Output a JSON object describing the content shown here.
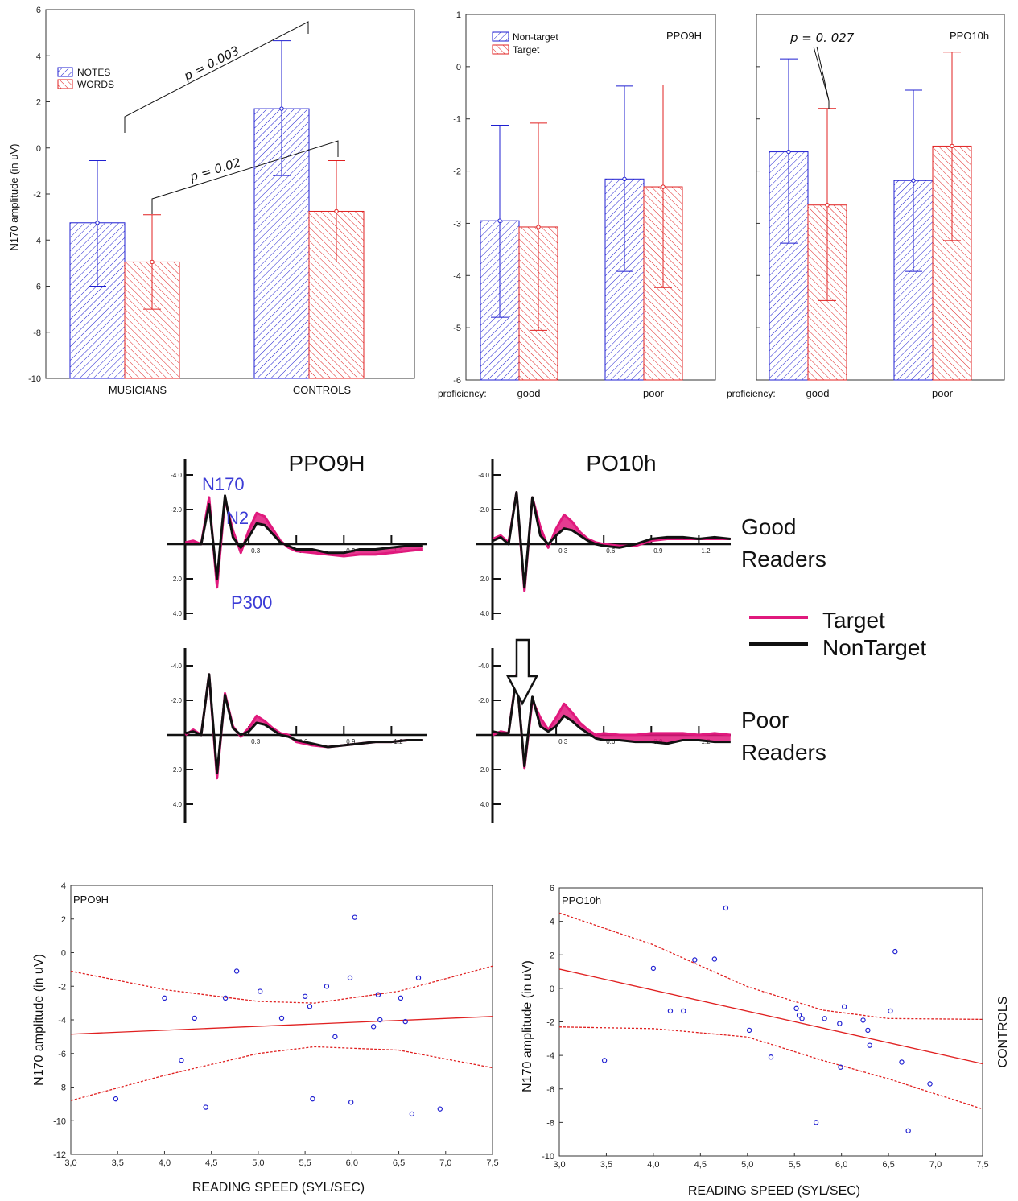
{
  "colors": {
    "blue": "#1f1fd1",
    "red": "#e02020",
    "magenta": "#e0197d",
    "black": "#111111",
    "component_label": "#3b3bd6"
  },
  "chart_data": [
    {
      "type": "bar",
      "ylabel": "N170 amplitude (in uV)",
      "ylim": [
        -10,
        6
      ],
      "yticks": [
        "6",
        "4",
        "2",
        "0",
        "-2",
        "-4",
        "-6",
        "-8",
        "-10"
      ],
      "categories": [
        "MUSICIANS",
        "CONTROLS"
      ],
      "series": [
        {
          "name": "NOTES",
          "values": [
            -3.25,
            1.7
          ],
          "error_low": [
            -6.0,
            -1.2
          ],
          "error_high": [
            -0.55,
            4.65
          ]
        },
        {
          "name": "WORDS",
          "values": [
            -4.95,
            -2.75
          ],
          "error_low": [
            -7.0,
            -4.95
          ],
          "error_high": [
            -2.9,
            -0.55
          ]
        }
      ],
      "annotations": [
        "p = 0.003",
        "p = 0.02"
      ]
    },
    {
      "type": "bar",
      "panel_label": "PPO9H",
      "ylim": [
        -6,
        1
      ],
      "yticks": [
        "1",
        "0",
        "-1",
        "-2",
        "-3",
        "-4",
        "-5",
        "-6"
      ],
      "axis_prefix": "proficiency:",
      "categories": [
        "good",
        "poor"
      ],
      "series": [
        {
          "name": "Non-target",
          "values": [
            -2.95,
            -2.15
          ],
          "error_low": [
            -4.8,
            -3.92
          ],
          "error_high": [
            -1.12,
            -0.37
          ]
        },
        {
          "name": "Target",
          "values": [
            -3.07,
            -2.3
          ],
          "error_low": [
            -5.05,
            -4.23
          ],
          "error_high": [
            -1.08,
            -0.35
          ]
        }
      ]
    },
    {
      "type": "bar",
      "panel_label": "PPO10h",
      "ylim": [
        -6,
        1
      ],
      "axis_prefix": "proficiency:",
      "categories": [
        "good",
        "poor"
      ],
      "series": [
        {
          "name": "Non-target",
          "values": [
            -1.63,
            -2.18
          ],
          "error_low": [
            -3.38,
            -3.92
          ],
          "error_high": [
            0.15,
            -0.45
          ]
        },
        {
          "name": "Target",
          "values": [
            -2.65,
            -1.52
          ],
          "error_low": [
            -4.48,
            -3.33
          ],
          "error_high": [
            -0.8,
            0.28
          ]
        }
      ],
      "annotations": [
        "p = 0. 027"
      ]
    },
    {
      "type": "line",
      "column_titles": [
        "PPO9H",
        "PO10h"
      ],
      "row_labels": [
        [
          "Good",
          "Readers"
        ],
        [
          "Poor",
          "Readers"
        ]
      ],
      "legend": [
        "Target",
        "NonTarget"
      ],
      "component_labels": [
        "N170",
        "N2",
        "P300"
      ],
      "yticks": [
        "-4.0",
        "-2.0",
        "2.0",
        "4.0"
      ],
      "xticks": [
        "0.3",
        "0.6",
        "0.9",
        "1.2"
      ],
      "x": [
        -0.1,
        -0.05,
        0.0,
        0.05,
        0.1,
        0.15,
        0.2,
        0.25,
        0.3,
        0.35,
        0.4,
        0.45,
        0.5,
        0.55,
        0.6,
        0.7,
        0.8,
        0.9,
        1.0,
        1.1,
        1.2,
        1.3,
        1.4
      ],
      "panels": [
        {
          "name": "PPO9H Good Readers",
          "target": [
            0.1,
            0.2,
            0.0,
            2.7,
            -2.5,
            2.6,
            0.8,
            -0.5,
            0.8,
            1.8,
            1.6,
            0.9,
            0.2,
            -0.2,
            -0.4,
            -0.5,
            -0.6,
            -0.7,
            -0.6,
            -0.6,
            -0.5,
            -0.4,
            -0.3
          ],
          "nontarget": [
            0.0,
            0.0,
            0.0,
            2.3,
            -2.0,
            2.8,
            0.4,
            -0.2,
            0.4,
            1.2,
            1.1,
            0.6,
            0.1,
            -0.1,
            -0.3,
            -0.3,
            -0.5,
            -0.5,
            -0.3,
            -0.3,
            -0.2,
            -0.1,
            -0.1
          ]
        },
        {
          "name": "PO10h Good Readers",
          "target": [
            0.3,
            0.5,
            0.1,
            3.0,
            -2.7,
            2.7,
            1.0,
            -0.2,
            0.9,
            1.7,
            1.3,
            0.7,
            0.3,
            0.1,
            0.0,
            -0.1,
            -0.1,
            0.2,
            0.3,
            0.3,
            0.3,
            0.3,
            0.3
          ],
          "nontarget": [
            0.2,
            0.4,
            0.0,
            3.0,
            -2.5,
            2.7,
            0.5,
            0.0,
            0.5,
            0.9,
            0.8,
            0.5,
            0.2,
            0.0,
            -0.1,
            -0.2,
            0.0,
            0.3,
            0.4,
            0.4,
            0.3,
            0.4,
            0.3
          ]
        },
        {
          "name": "PPO9H Poor Readers",
          "target": [
            0.0,
            0.3,
            0.0,
            3.5,
            -2.5,
            2.4,
            0.5,
            -0.1,
            0.4,
            1.1,
            0.8,
            0.4,
            0.1,
            0.0,
            -0.4,
            -0.6,
            -0.7,
            -0.6,
            -0.5,
            -0.4,
            -0.4,
            -0.3,
            -0.3
          ],
          "nontarget": [
            0.1,
            0.2,
            0.0,
            3.5,
            -2.2,
            2.3,
            0.4,
            0.0,
            0.2,
            0.7,
            0.6,
            0.3,
            0.0,
            -0.1,
            -0.3,
            -0.5,
            -0.7,
            -0.6,
            -0.5,
            -0.4,
            -0.4,
            -0.3,
            -0.3
          ]
        },
        {
          "name": "PO10h Poor Readers",
          "target": [
            0.0,
            0.2,
            0.1,
            3.5,
            -1.9,
            2.0,
            1.0,
            0.3,
            1.0,
            1.8,
            1.3,
            0.7,
            0.3,
            0.0,
            0.1,
            0.0,
            0.0,
            0.1,
            0.1,
            0.1,
            0.0,
            0.1,
            0.0
          ],
          "nontarget": [
            0.2,
            0.1,
            0.1,
            3.4,
            -1.8,
            2.2,
            0.5,
            0.2,
            0.5,
            1.1,
            0.8,
            0.4,
            0.1,
            -0.2,
            -0.3,
            -0.3,
            -0.4,
            -0.4,
            -0.5,
            -0.3,
            -0.3,
            -0.4,
            -0.4
          ]
        }
      ]
    },
    {
      "type": "scatter",
      "panel_label": "PPO9H",
      "xlabel": "READING SPEED (SYL/SEC)",
      "ylabel": "N170 amplitude (in uV)",
      "xlim": [
        3.0,
        7.5
      ],
      "ylim": [
        -12,
        4
      ],
      "xticks": [
        "3,0",
        "3,5",
        "4,0",
        "4,5",
        "5,0",
        "5,5",
        "6,0",
        "6,5",
        "7,0",
        "7,5"
      ],
      "yticks": [
        "4",
        "2",
        "0",
        "-2",
        "-4",
        "-6",
        "-8",
        "-10",
        "-12"
      ],
      "points": [
        [
          3.48,
          -8.7
        ],
        [
          4.0,
          -2.7
        ],
        [
          4.18,
          -6.4
        ],
        [
          4.32,
          -3.9
        ],
        [
          4.44,
          -9.2
        ],
        [
          4.65,
          -2.7
        ],
        [
          4.77,
          -1.1
        ],
        [
          5.02,
          -2.3
        ],
        [
          5.25,
          -3.9
        ],
        [
          5.5,
          -2.6
        ],
        [
          5.55,
          -3.2
        ],
        [
          5.58,
          -8.7
        ],
        [
          5.73,
          -2.0
        ],
        [
          5.82,
          -5.0
        ],
        [
          5.98,
          -1.5
        ],
        [
          5.99,
          -8.9
        ],
        [
          6.03,
          2.1
        ],
        [
          6.23,
          -4.4
        ],
        [
          6.28,
          -2.5
        ],
        [
          6.3,
          -4.0
        ],
        [
          6.52,
          -2.7
        ],
        [
          6.57,
          -4.1
        ],
        [
          6.64,
          -9.6
        ],
        [
          6.71,
          -1.5
        ],
        [
          6.94,
          -9.3
        ]
      ],
      "fit": {
        "x": [
          3.0,
          7.5
        ],
        "y": [
          -4.85,
          -3.8
        ]
      },
      "ci_upper": {
        "x": [
          3.0,
          4.0,
          5.0,
          5.6,
          6.5,
          7.5
        ],
        "y": [
          -1.1,
          -2.2,
          -2.9,
          -3.0,
          -2.3,
          -0.8
        ]
      },
      "ci_lower": {
        "x": [
          3.0,
          4.0,
          5.0,
          5.6,
          6.5,
          7.5
        ],
        "y": [
          -8.8,
          -7.3,
          -6.0,
          -5.6,
          -5.8,
          -6.85
        ]
      }
    },
    {
      "type": "scatter",
      "panel_label": "PPO10h",
      "side_label": "CONTROLS",
      "xlabel": "READING SPEED (SYL/SEC)",
      "ylabel": "N170 amplitude (in uV)",
      "xlim": [
        3.0,
        7.5
      ],
      "ylim": [
        -10,
        6
      ],
      "xticks": [
        "3,0",
        "3,5",
        "4,0",
        "4,5",
        "5,0",
        "5,5",
        "6,0",
        "6,5",
        "7,0",
        "7,5"
      ],
      "yticks": [
        "6",
        "4",
        "2",
        "0",
        "-2",
        "-4",
        "-6",
        "-8",
        "-10"
      ],
      "points": [
        [
          3.48,
          -4.3
        ],
        [
          4.0,
          1.2
        ],
        [
          4.18,
          -1.35
        ],
        [
          4.32,
          -1.35
        ],
        [
          4.44,
          1.7
        ],
        [
          4.65,
          1.75
        ],
        [
          4.77,
          4.8
        ],
        [
          5.02,
          -2.5
        ],
        [
          5.25,
          -4.1
        ],
        [
          5.52,
          -1.2
        ],
        [
          5.55,
          -1.6
        ],
        [
          5.58,
          -1.8
        ],
        [
          5.73,
          -8.0
        ],
        [
          5.82,
          -1.8
        ],
        [
          5.98,
          -2.1
        ],
        [
          5.99,
          -4.7
        ],
        [
          6.03,
          -1.1
        ],
        [
          6.23,
          -1.9
        ],
        [
          6.28,
          -2.5
        ],
        [
          6.3,
          -3.4
        ],
        [
          6.52,
          -1.35
        ],
        [
          6.57,
          2.2
        ],
        [
          6.64,
          -4.4
        ],
        [
          6.71,
          -8.5
        ],
        [
          6.94,
          -5.7
        ]
      ],
      "fit": {
        "x": [
          3.0,
          7.5
        ],
        "y": [
          1.15,
          -4.5
        ]
      },
      "ci_upper": {
        "x": [
          3.0,
          4.0,
          5.0,
          5.8,
          6.5,
          7.5
        ],
        "y": [
          4.5,
          2.6,
          0.1,
          -1.3,
          -1.8,
          -1.85
        ]
      },
      "ci_lower": {
        "x": [
          3.0,
          4.0,
          5.0,
          5.8,
          6.5,
          7.5
        ],
        "y": [
          -2.3,
          -2.4,
          -2.9,
          -4.3,
          -5.4,
          -7.2
        ]
      }
    }
  ]
}
